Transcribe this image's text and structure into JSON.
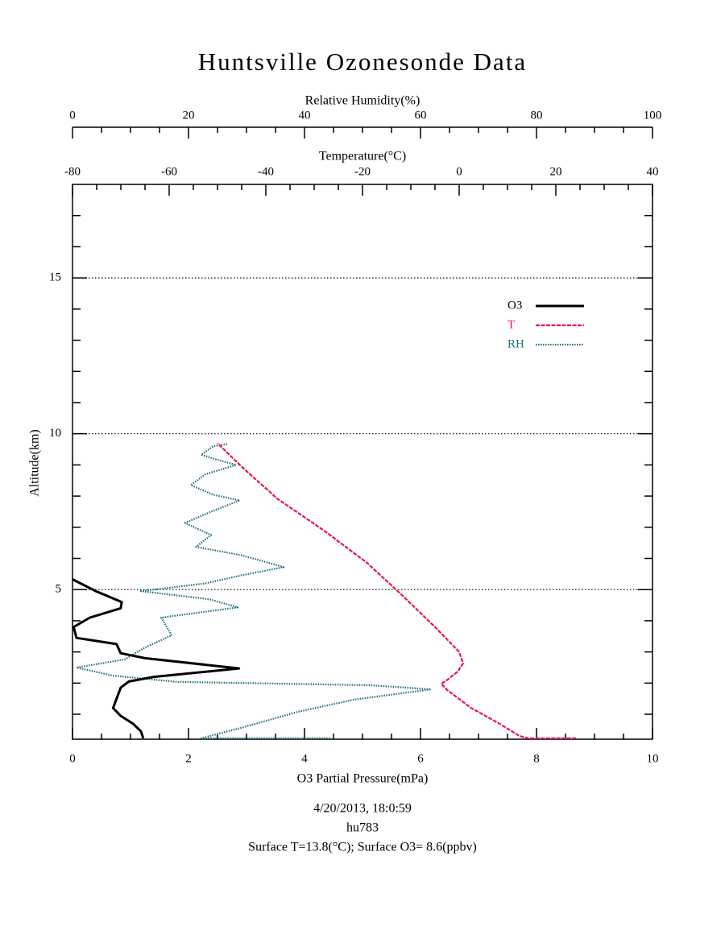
{
  "chart_data": {
    "type": "line",
    "title": "Huntsville Ozonesonde Data",
    "xlabel": "O3 Partial Pressure(mPa)",
    "ylabel": "Altitude(km)",
    "xlim": [
      0,
      10
    ],
    "xticks": [
      0,
      2,
      4,
      6,
      8,
      10
    ],
    "xminor": [
      0.5,
      1,
      1.5,
      2.5,
      3,
      3.5,
      4.5,
      5,
      5.5,
      6.5,
      7,
      7.5,
      8.5,
      9,
      9.5
    ],
    "ylim": [
      0.2,
      18
    ],
    "yticks": [
      5,
      10,
      15
    ],
    "yminor": [
      1,
      2,
      3,
      4,
      6,
      7,
      8,
      9,
      11,
      12,
      13,
      14,
      16,
      17
    ],
    "grid": true,
    "x2label": "Temperature(°C)",
    "x2lim": [
      -80,
      40
    ],
    "x2ticks": [
      -80,
      -60,
      -40,
      -20,
      0,
      20,
      40
    ],
    "x2minor": [
      -75,
      -70,
      -65,
      -55,
      -50,
      -45,
      -35,
      -30,
      -25,
      -15,
      -10,
      -5,
      5,
      10,
      15,
      25,
      30,
      35
    ],
    "x3label": "Relative Humidity(%)",
    "x3lim": [
      0,
      100
    ],
    "x3ticks": [
      0,
      20,
      40,
      60,
      80,
      100
    ],
    "x3minor": [
      5,
      10,
      15,
      25,
      30,
      35,
      45,
      50,
      55,
      65,
      70,
      75,
      85,
      90,
      95
    ],
    "legend": "upper right",
    "series": [
      {
        "name": "RH",
        "color": "#1f6f78",
        "axis": "x3",
        "x": [
          44.4,
          22.2,
          29.2,
          38.9,
          48.6,
          61.8,
          51.4,
          18,
          6.9,
          0.7,
          9,
          12.5,
          17.1,
          15.3,
          28.5,
          23.6,
          11.8,
          22.9,
          29.2,
          36.4,
          29.2,
          21.3,
          23.9,
          19.4,
          23.9,
          28.8,
          24.3,
          20.4,
          22.9,
          28.2,
          24.3,
          22.2,
          24.3,
          26.8
        ],
        "y": [
          0.23,
          0.23,
          0.57,
          1.08,
          1.47,
          1.8,
          1.93,
          2.04,
          2.24,
          2.5,
          2.76,
          3.14,
          3.53,
          4.1,
          4.43,
          4.69,
          4.95,
          5.2,
          5.46,
          5.72,
          6.1,
          6.37,
          6.75,
          7.14,
          7.5,
          7.86,
          8.04,
          8.35,
          8.7,
          9.0,
          9.2,
          9.33,
          9.6,
          9.67
        ]
      },
      {
        "name": "T",
        "color": "#e8174a",
        "axis": "x2",
        "x": [
          24.2,
          14.2,
          12.5,
          8.3,
          2.5,
          -2.5,
          -3.7,
          -2.5,
          -0.3,
          0.8,
          0,
          -5,
          -11.7,
          -19,
          -28,
          -37.5,
          -45,
          -50
        ],
        "y": [
          0.23,
          0.23,
          0.3,
          0.7,
          1.2,
          1.78,
          1.98,
          2.1,
          2.37,
          2.63,
          3.0,
          3.8,
          4.8,
          5.85,
          6.9,
          7.9,
          8.94,
          9.7
        ]
      },
      {
        "name": "O3",
        "color": "#000000",
        "axis": "x",
        "x": [
          1.22,
          1.18,
          1.04,
          0.83,
          0.7,
          0.83,
          0.97,
          1.4,
          2.87,
          1.25,
          0.83,
          0.76,
          0.07,
          0.02,
          0.3,
          0.83,
          0.85,
          0.4,
          0
        ],
        "y": [
          0.23,
          0.45,
          0.7,
          0.95,
          1.2,
          1.85,
          2.05,
          2.2,
          2.47,
          2.8,
          2.96,
          3.25,
          3.45,
          3.8,
          4.1,
          4.4,
          4.6,
          4.95,
          5.33
        ]
      }
    ],
    "footer": [
      "4/20/2013, 18:0:59",
      "hu783",
      "Surface T=13.8(°C); Surface O3= 8.6(ppbv)"
    ]
  }
}
